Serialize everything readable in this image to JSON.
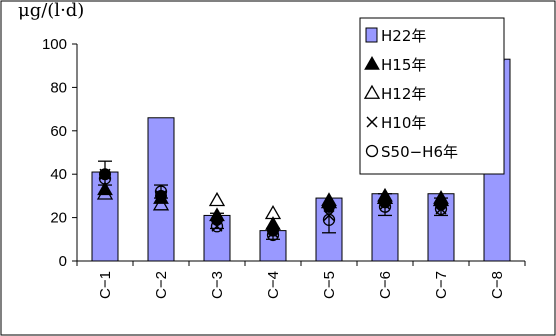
{
  "chart_data": {
    "type": "bar",
    "ylabel": "μg/(l·d)",
    "categories": [
      "C−1",
      "C−2",
      "C−3",
      "C−4",
      "C−5",
      "C−6",
      "C−7",
      "C−8"
    ],
    "ylim": [
      0,
      100
    ],
    "yticks": [
      0,
      20,
      40,
      60,
      80,
      100
    ],
    "grid": false,
    "legend_position": "top-right",
    "bar_color": "#9999ff",
    "series": [
      {
        "name": "H22年",
        "kind": "bar",
        "values": [
          41,
          66,
          21,
          14,
          29,
          31,
          31,
          93
        ]
      },
      {
        "name": "H15年",
        "kind": "filled-triangle",
        "values": [
          33,
          29,
          21,
          17,
          28,
          30,
          29,
          95
        ]
      },
      {
        "name": "H12年",
        "kind": "open-triangle",
        "values": [
          31,
          26,
          28,
          22,
          27,
          29,
          28,
          null
        ]
      },
      {
        "name": "H10年",
        "kind": "cross",
        "values": [
          40,
          30,
          16,
          13,
          21,
          26,
          24,
          null
        ]
      },
      {
        "name": "S50−H6年",
        "kind": "open-circle",
        "values": [
          38,
          32,
          16,
          12,
          19,
          25,
          24,
          null
        ]
      }
    ],
    "error_bars": [
      {
        "category": "C−1",
        "low": 35,
        "high": 46
      },
      {
        "category": "C−2",
        "low": 29,
        "high": 35
      },
      {
        "category": "C−3",
        "low": 15,
        "high": 22
      },
      {
        "category": "C−4",
        "low": 10,
        "high": 15
      },
      {
        "category": "C−5",
        "low": 13,
        "high": 25
      },
      {
        "category": "C−6",
        "low": 21,
        "high": 31
      },
      {
        "category": "C−7",
        "low": 21,
        "high": 29
      }
    ],
    "avg_marker": [
      40,
      30,
      19,
      14,
      25,
      27,
      26,
      null
    ]
  }
}
